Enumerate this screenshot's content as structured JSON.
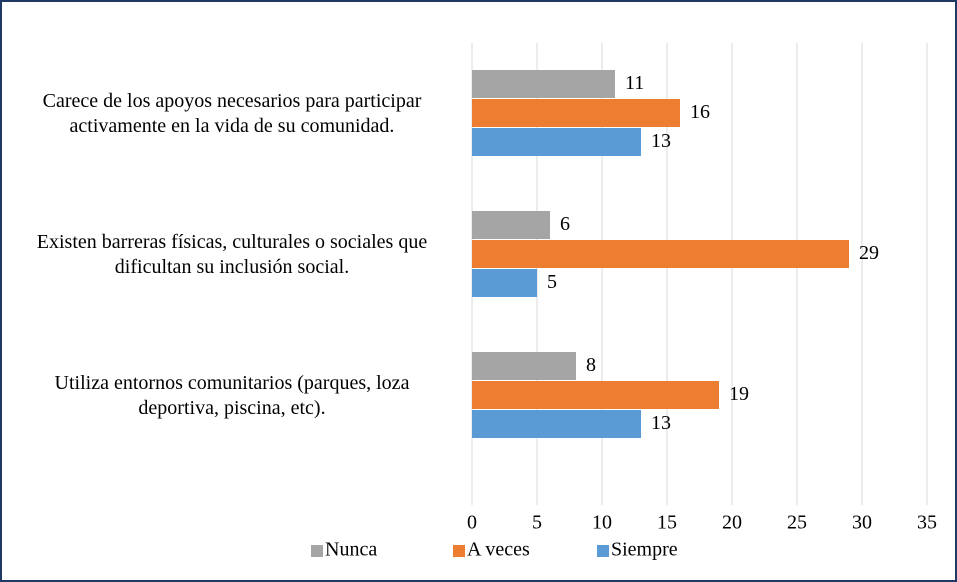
{
  "chart_data": {
    "type": "bar",
    "orientation": "horizontal",
    "categories": [
      "Carece de los apoyos necesarios para participar activamente en la vida de su comunidad.",
      "Existen barreras físicas, culturales o sociales que dificultan su inclusión social.",
      "Utiliza entornos comunitarios (parques, loza deportiva, piscina, etc)."
    ],
    "series": [
      {
        "name": "Nunca",
        "color": "#a5a5a5",
        "values": [
          11,
          6,
          8
        ]
      },
      {
        "name": "A veces",
        "color": "#ed7d31",
        "values": [
          16,
          29,
          19
        ]
      },
      {
        "name": "Siempre",
        "color": "#5b9bd5",
        "values": [
          13,
          5,
          13
        ]
      }
    ],
    "xlim": [
      0,
      35
    ],
    "xticks": [
      0,
      5,
      10,
      15,
      20,
      25,
      30,
      35
    ],
    "grid": true,
    "legend": "bottom"
  }
}
